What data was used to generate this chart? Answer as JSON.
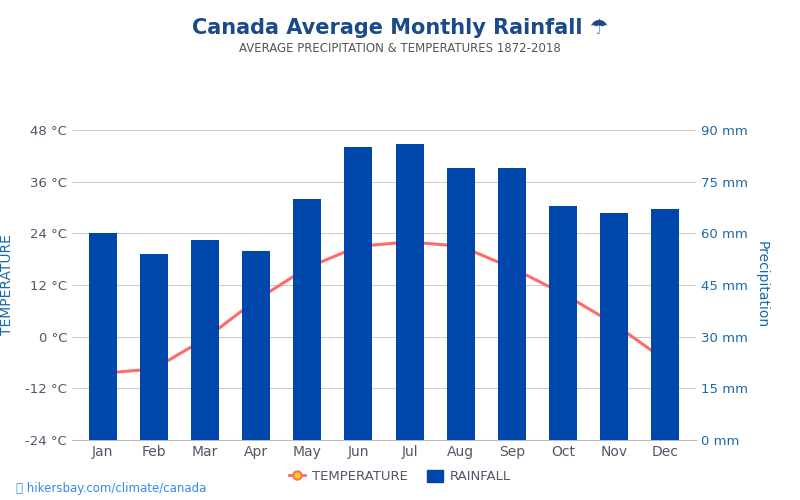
{
  "months": [
    "Jan",
    "Feb",
    "Mar",
    "Apr",
    "May",
    "Jun",
    "Jul",
    "Aug",
    "Sep",
    "Oct",
    "Nov",
    "Dec"
  ],
  "rainfall_mm": [
    60,
    54,
    58,
    55,
    70,
    85,
    86,
    79,
    79,
    68,
    66,
    67
  ],
  "temperature_c": [
    -8.5,
    -7.5,
    -0.5,
    8.5,
    16,
    21,
    22,
    21,
    16,
    10,
    3,
    -5.5
  ],
  "bar_color": "#0047AB",
  "line_color": "#FF6B6B",
  "marker_face": "#FFD700",
  "marker_edge": "#FF6B6B",
  "title": "Canada Average Monthly Rainfall ☂",
  "subtitle": "AVERAGE PRECIPITATION & TEMPERATURES 1872-2018",
  "ylabel_left": "TEMPERATURE",
  "ylabel_right": "Precipitation",
  "ylim_left": [
    -24,
    48
  ],
  "ylim_right": [
    0,
    90
  ],
  "yticks_left": [
    -24,
    -12,
    0,
    12,
    24,
    36,
    48
  ],
  "yticks_right": [
    0,
    15,
    30,
    45,
    60,
    75,
    90
  ],
  "title_color": "#1a4a8a",
  "subtitle_color": "#555555",
  "axis_label_color": "#1a6aaa",
  "tick_label_color_left": "#555566",
  "tick_label_color_right": "#1a6aaa",
  "watermark": "⛳ hikersbay.com/climate/canada",
  "background_color": "#ffffff",
  "legend_temp_label": "TEMPERATURE",
  "legend_rain_label": "RAINFALL"
}
